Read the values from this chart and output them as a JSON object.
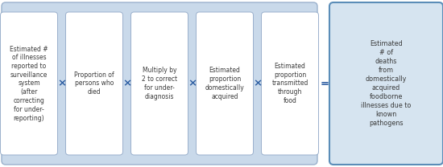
{
  "fig_width": 5.5,
  "fig_height": 2.08,
  "dpi": 100,
  "background_color": "#ffffff",
  "outer_box_color": "#c9d9ea",
  "outer_box_border": "#9ab0cc",
  "inner_box_color": "#ffffff",
  "inner_box_border": "#9ab0cc",
  "result_box_color": "#d6e4f0",
  "result_box_border": "#5b8db8",
  "operator_color": "#2e5fa3",
  "text_color": "#3a3a3a",
  "boxes": [
    "Estimated #\nof illnesses\nreported to\nsurveillance\nsystem\n(after\ncorrecting\nfor under-\nreporting)",
    "Proportion of\npersons who\ndied",
    "Multiply by\n2 to correct\nfor under-\ndiagnosis",
    "Estimated\nproportion\ndomestically\nacquired",
    "Estimated\nproportion\ntransmitted\nthrough\nfood"
  ],
  "result_text": "Estimated\n# of\ndeaths\nfrom\ndomestically\nacquired\nfoodborne\nillnesses due to\nknown\npathogens",
  "operators": [
    "×",
    "×",
    "×",
    "×"
  ],
  "font_size": 5.5,
  "result_font_size": 5.8,
  "op_font_size": 9.5,
  "eq_font_size": 9.5
}
